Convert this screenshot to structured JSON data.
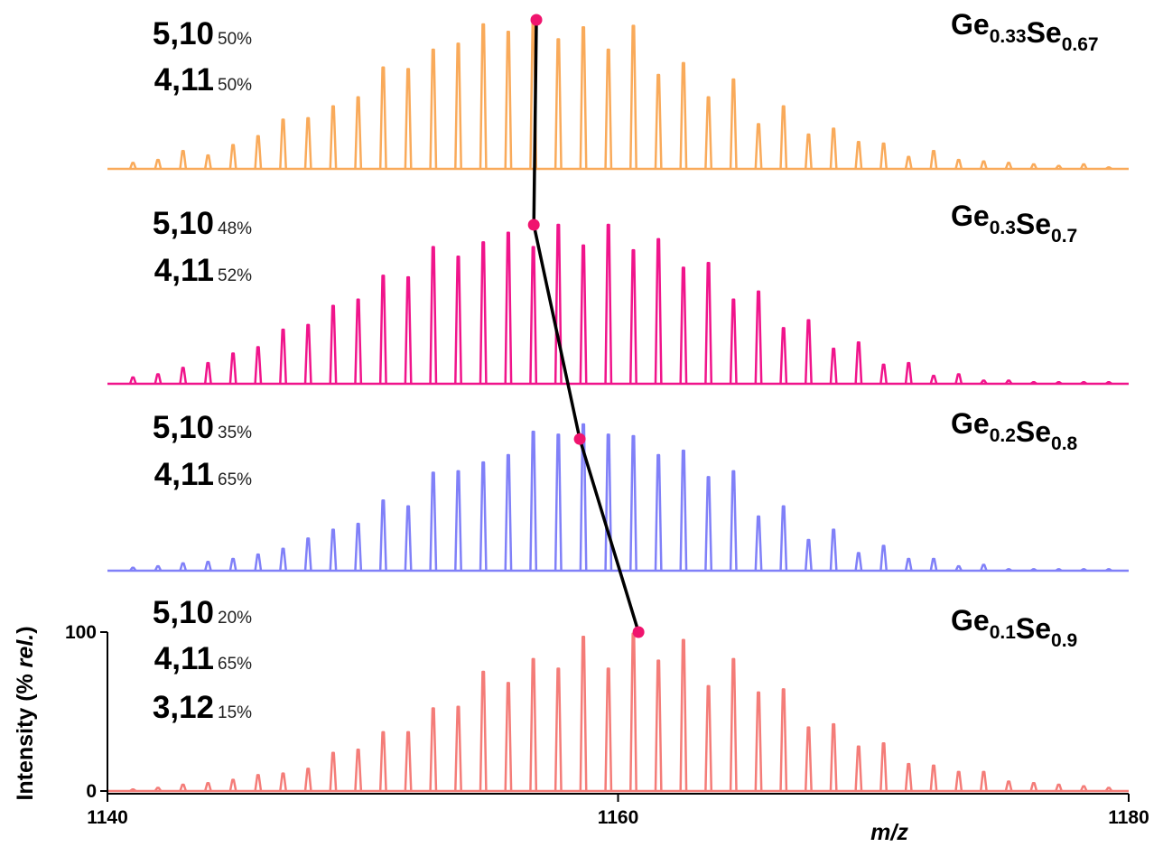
{
  "chart_data": {
    "type": "line",
    "xlabel": "m/z",
    "ylabel_main": "Intensity (% ",
    "ylabel_italic": "rel.",
    "ylabel_end": ")",
    "xlim": [
      1140,
      1180
    ],
    "xticks": [
      "1140",
      "1160",
      "1180"
    ],
    "ylim": [
      0,
      100
    ],
    "yticks": [
      "0",
      "100"
    ],
    "peak_spacing": 0.98,
    "peak_start": 1141.0,
    "series": [
      {
        "name": "Ge0.33Se0.67",
        "formula": [
          {
            "el": "Ge",
            "sub": "0.33"
          },
          {
            "el": "Se",
            "sub": "0.67"
          }
        ],
        "color": "#F9AA5A",
        "labels": [
          {
            "text": "5,10",
            "pct": "50%"
          },
          {
            "text": "4,11",
            "pct": "50%"
          }
        ],
        "marker_x": 1156.8,
        "marker_y": 100,
        "values": [
          4,
          6,
          12,
          9,
          16,
          22,
          33,
          34,
          42,
          48,
          68,
          67,
          80,
          84,
          97,
          92,
          100,
          87,
          95,
          80,
          96,
          63,
          71,
          48,
          60,
          30,
          42,
          23,
          27,
          18,
          17,
          8,
          12,
          6,
          5,
          4,
          3,
          2,
          3,
          1
        ]
      },
      {
        "name": "Ge0.3Se0.7",
        "formula": [
          {
            "el": "Ge",
            "sub": "0.3"
          },
          {
            "el": "Se",
            "sub": "0.7"
          }
        ],
        "color": "#F0148B",
        "labels": [
          {
            "text": "5,10",
            "pct": "48%"
          },
          {
            "text": "4,11",
            "pct": "52%"
          }
        ],
        "marker_x": 1156.7,
        "marker_y": 100,
        "values": [
          4,
          6,
          10,
          13,
          19,
          23,
          34,
          37,
          49,
          53,
          68,
          67,
          86,
          80,
          89,
          95,
          86,
          100,
          87,
          100,
          84,
          91,
          73,
          76,
          53,
          58,
          35,
          40,
          22,
          26,
          12,
          13,
          5,
          6,
          2,
          2,
          1,
          1,
          1,
          1
        ]
      },
      {
        "name": "Ge0.2Se0.8",
        "formula": [
          {
            "el": "Ge",
            "sub": "0.2"
          },
          {
            "el": "Se",
            "sub": "0.8"
          }
        ],
        "color": "#8080F8",
        "labels": [
          {
            "text": "5,10",
            "pct": "35%"
          },
          {
            "text": "4,11",
            "pct": "65%"
          }
        ],
        "marker_x": 1158.5,
        "marker_y": 90,
        "values": [
          2,
          3,
          5,
          6,
          8,
          11,
          15,
          22,
          28,
          32,
          48,
          44,
          67,
          68,
          74,
          79,
          95,
          93,
          100,
          93,
          92,
          79,
          82,
          64,
          68,
          37,
          44,
          21,
          28,
          12,
          17,
          8,
          8,
          3,
          4,
          1,
          1,
          1,
          1,
          1
        ]
      },
      {
        "name": "Ge0.1Se0.9",
        "formula": [
          {
            "el": "Ge",
            "sub": "0.1"
          },
          {
            "el": "Se",
            "sub": "0.9"
          }
        ],
        "color": "#F47C78",
        "labels": [
          {
            "text": "5,10",
            "pct": "20%"
          },
          {
            "text": "4,11",
            "pct": "65%"
          },
          {
            "text": "3,12",
            "pct": "15%"
          }
        ],
        "marker_x": 1160.8,
        "marker_y": 100,
        "values": [
          1,
          2,
          4,
          5,
          7,
          10,
          11,
          14,
          24,
          26,
          37,
          37,
          52,
          53,
          75,
          68,
          83,
          77,
          97,
          77,
          99,
          82,
          95,
          66,
          83,
          62,
          64,
          40,
          42,
          28,
          30,
          17,
          16,
          12,
          12,
          6,
          5,
          4,
          3,
          2
        ]
      }
    ]
  }
}
